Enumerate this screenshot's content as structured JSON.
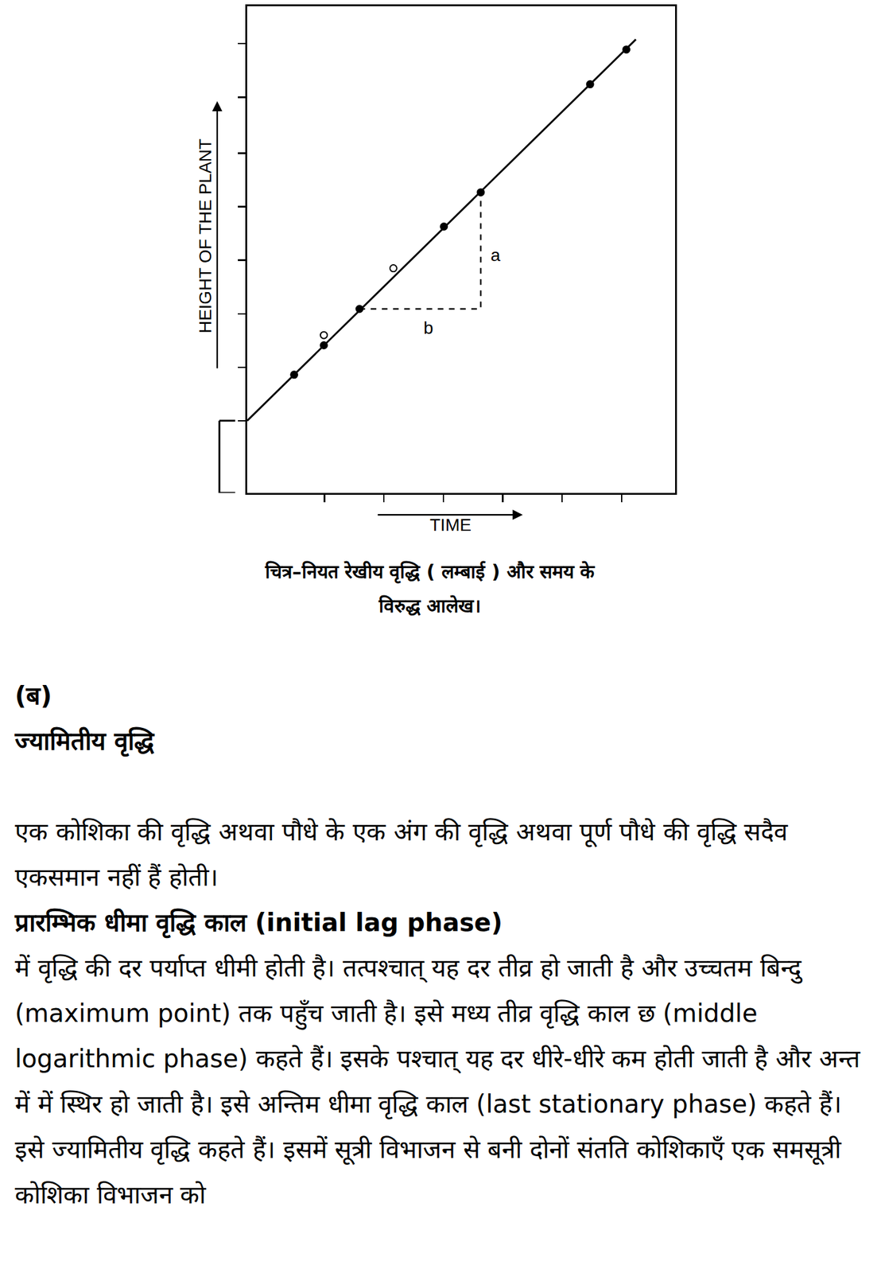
{
  "chart_data": {
    "type": "line",
    "xlabel": "TIME",
    "ylabel": "HEIGHT OF THE PLANT",
    "xlim": [
      0,
      7.2
    ],
    "ylim": [
      0,
      9.1
    ],
    "xticks": [
      1.3,
      2.3,
      3.3,
      4.3,
      5.3,
      6.3
    ],
    "yticks": [
      1.35,
      2.35,
      3.35,
      4.35,
      5.35,
      6.35,
      7.4,
      8.4
    ],
    "tick_labels": false,
    "grid": false,
    "series": [
      {
        "type": "line",
        "line_style": "solid",
        "color": "#000000",
        "x": [
          0,
          6.54
        ],
        "values": [
          1.35,
          8.48
        ]
      },
      {
        "type": "scatter",
        "marker": "filled_circle",
        "color": "#000000",
        "x": [
          0.79,
          1.29,
          1.89,
          3.31,
          3.93,
          5.77,
          6.38
        ],
        "values": [
          2.21,
          2.76,
          3.44,
          4.98,
          5.62,
          7.64,
          8.29
        ]
      },
      {
        "type": "scatter",
        "marker": "open_circle",
        "color": "#000000",
        "x": [
          1.29,
          2.46
        ],
        "values": [
          2.95,
          4.2
        ]
      },
      {
        "type": "line",
        "line_style": "dashed",
        "color": "#000000",
        "x": [
          1.89,
          3.93,
          3.93
        ],
        "values": [
          3.44,
          3.44,
          5.62
        ]
      }
    ],
    "annotations": [
      {
        "text": "a",
        "x": 4.18,
        "y": 4.45
      },
      {
        "text": "b",
        "x": 3.05,
        "y": 3.09
      }
    ]
  },
  "caption": [
    "चित्र–नियत रेखीय वृद्धि ( लम्बाई ) और समय के",
    "विरुद्ध आलेख।"
  ],
  "section": {
    "label": "(ब)",
    "heading": "ज्यामितीय वृद्धि",
    "paragraph_1": "एक कोशिका की वृद्धि अथवा पौधे के एक अंग की वृद्धि अथवा पूर्ण पौधे की वृद्धि सदैव एकसमान नहीं हैं होती।",
    "bold_line": "प्रारम्भिक धीमा वृद्धि काल (initial lag phase)",
    "paragraph_2": "में वृद्धि की दर पर्याप्त धीमी होती है। तत्पश्चात् यह दर तीव्र हो जाती है और उच्चतम बिन्दु (maximum point) तक पहुँच जाती है। इसे मध्य तीव्र वृद्धि काल छ (middle logarithmic phase) कहते हैं। इसके पश्चात् यह दर धीरे-धीरे कम होती जाती है और अन्त में में स्थिर हो जाती है। इसे अन्तिम धीमा वृद्धि काल (last stationary phase) कहते हैं। इसे ज्यामितीय वृद्धि कहते हैं। इसमें सूत्री विभाजन से बनी दोनों संतति कोशिकाएँ एक समसूत्री कोशिका विभाजन को"
  }
}
